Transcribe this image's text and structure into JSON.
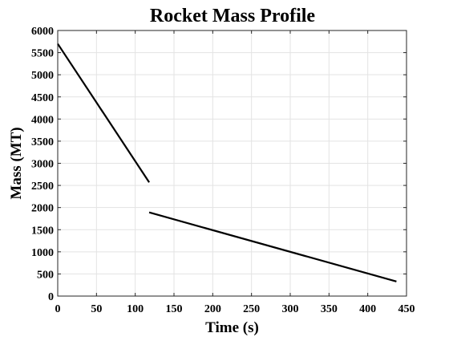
{
  "chart_data": {
    "type": "line",
    "title": "Rocket Mass Profile",
    "xlabel": "Time (s)",
    "ylabel": "Mass (MT)",
    "xlim": [
      0,
      450
    ],
    "ylim": [
      0,
      6000
    ],
    "xticks": [
      0,
      50,
      100,
      150,
      200,
      250,
      300,
      350,
      400,
      450
    ],
    "yticks": [
      0,
      500,
      1000,
      1500,
      2000,
      2500,
      3000,
      3500,
      4000,
      4500,
      5000,
      5500,
      6000
    ],
    "grid": true,
    "legend": false,
    "line_color": "#000000",
    "series": [
      {
        "x": [
          0,
          118
        ],
        "y": [
          5700,
          2570
        ]
      },
      {
        "x": [
          118,
          437
        ],
        "y": [
          1890,
          330
        ]
      }
    ]
  }
}
